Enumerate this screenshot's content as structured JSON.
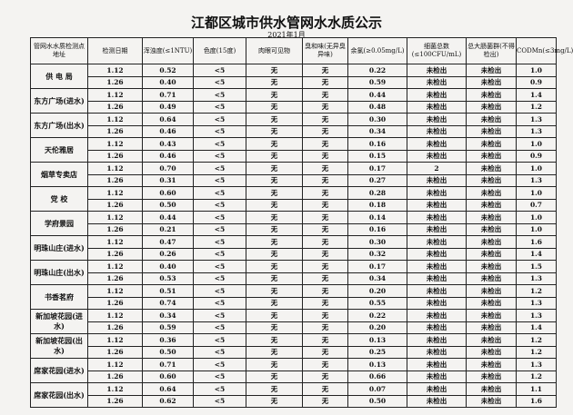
{
  "title": "江都区城市供水管网水水质公示",
  "subtitle": "2021年1月",
  "headers": [
    "管网水水质检测点地址",
    "检测日期",
    "浑浊度(≤1NTU)",
    "色度(15度)",
    "肉眼可见物",
    "臭和味(无异臭异味)",
    "余氯(≥0.05mg/L)",
    "细菌总数(≤100CFU/mL)",
    "总大肠菌群(不得检出)",
    "CODMn(≤3mg/L)"
  ],
  "sites": [
    {
      "name": "供 电 局",
      "rows": [
        [
          "1.12",
          "0.52",
          "<5",
          "无",
          "无",
          "0.22",
          "未检出",
          "未检出",
          "1.0"
        ],
        [
          "1.26",
          "0.40",
          "<5",
          "无",
          "无",
          "0.59",
          "未检出",
          "未检出",
          "0.9"
        ]
      ]
    },
    {
      "name": "东方广场(进水)",
      "rows": [
        [
          "1.12",
          "0.71",
          "<5",
          "无",
          "无",
          "0.44",
          "未检出",
          "未检出",
          "1.4"
        ],
        [
          "1.26",
          "0.49",
          "<5",
          "无",
          "无",
          "0.48",
          "未检出",
          "未检出",
          "1.2"
        ]
      ]
    },
    {
      "name": "东方广场(出水)",
      "rows": [
        [
          "1.12",
          "0.64",
          "<5",
          "无",
          "无",
          "0.30",
          "未检出",
          "未检出",
          "1.3"
        ],
        [
          "1.26",
          "0.46",
          "<5",
          "无",
          "无",
          "0.34",
          "未检出",
          "未检出",
          "1.3"
        ]
      ]
    },
    {
      "name": "天伦雅居",
      "rows": [
        [
          "1.12",
          "0.43",
          "<5",
          "无",
          "无",
          "0.16",
          "未检出",
          "未检出",
          "1.0"
        ],
        [
          "1.26",
          "0.46",
          "<5",
          "无",
          "无",
          "0.15",
          "未检出",
          "未检出",
          "0.9"
        ]
      ]
    },
    {
      "name": "烟草专卖店",
      "rows": [
        [
          "1.12",
          "0.70",
          "<5",
          "无",
          "无",
          "0.17",
          "2",
          "未检出",
          "1.0"
        ],
        [
          "1.26",
          "0.31",
          "<5",
          "无",
          "无",
          "0.27",
          "未检出",
          "未检出",
          "1.3"
        ]
      ]
    },
    {
      "name": "党 校",
      "rows": [
        [
          "1.12",
          "0.60",
          "<5",
          "无",
          "无",
          "0.28",
          "未检出",
          "未检出",
          "1.0"
        ],
        [
          "1.26",
          "0.50",
          "<5",
          "无",
          "无",
          "0.18",
          "未检出",
          "未检出",
          "0.7"
        ]
      ]
    },
    {
      "name": "学府景园",
      "rows": [
        [
          "1.12",
          "0.44",
          "<5",
          "无",
          "无",
          "0.14",
          "未检出",
          "未检出",
          "1.0"
        ],
        [
          "1.26",
          "0.21",
          "<5",
          "无",
          "无",
          "0.16",
          "未检出",
          "未检出",
          "1.0"
        ]
      ]
    },
    {
      "name": "明珠山庄(进水)",
      "rows": [
        [
          "1.12",
          "0.47",
          "<5",
          "无",
          "无",
          "0.30",
          "未检出",
          "未检出",
          "1.6"
        ],
        [
          "1.26",
          "0.26",
          "<5",
          "无",
          "无",
          "0.32",
          "未检出",
          "未检出",
          "1.4"
        ]
      ]
    },
    {
      "name": "明珠山庄(出水)",
      "rows": [
        [
          "1.12",
          "0.40",
          "<5",
          "无",
          "无",
          "0.17",
          "未检出",
          "未检出",
          "1.5"
        ],
        [
          "1.26",
          "0.53",
          "<5",
          "无",
          "无",
          "0.34",
          "未检出",
          "未检出",
          "1.3"
        ]
      ]
    },
    {
      "name": "书香茗府",
      "rows": [
        [
          "1.12",
          "0.51",
          "<5",
          "无",
          "无",
          "0.20",
          "未检出",
          "未检出",
          "1.2"
        ],
        [
          "1.26",
          "0.74",
          "<5",
          "无",
          "无",
          "0.55",
          "未检出",
          "未检出",
          "1.3"
        ]
      ]
    },
    {
      "name": "新加坡花园(进水)",
      "rows": [
        [
          "1.12",
          "0.34",
          "<5",
          "无",
          "无",
          "0.22",
          "未检出",
          "未检出",
          "1.3"
        ],
        [
          "1.26",
          "0.59",
          "<5",
          "无",
          "无",
          "0.20",
          "未检出",
          "未检出",
          "1.4"
        ]
      ]
    },
    {
      "name": "新加坡花园(出水)",
      "rows": [
        [
          "1.12",
          "0.36",
          "<5",
          "无",
          "无",
          "0.13",
          "未检出",
          "未检出",
          "1.2"
        ],
        [
          "1.26",
          "0.50",
          "<5",
          "无",
          "无",
          "0.25",
          "未检出",
          "未检出",
          "1.2"
        ]
      ]
    },
    {
      "name": "席家花园(进水)",
      "rows": [
        [
          "1.12",
          "0.71",
          "<5",
          "无",
          "无",
          "0.13",
          "未检出",
          "未检出",
          "1.3"
        ],
        [
          "1.26",
          "0.60",
          "<5",
          "无",
          "无",
          "0.66",
          "未检出",
          "未检出",
          "1.2"
        ]
      ]
    },
    {
      "name": "席家花园(出水)",
      "rows": [
        [
          "1.12",
          "0.64",
          "<5",
          "无",
          "无",
          "0.07",
          "未检出",
          "未检出",
          "1.1"
        ],
        [
          "1.26",
          "0.62",
          "<5",
          "无",
          "无",
          "0.50",
          "未检出",
          "未检出",
          "1.6"
        ]
      ]
    }
  ]
}
